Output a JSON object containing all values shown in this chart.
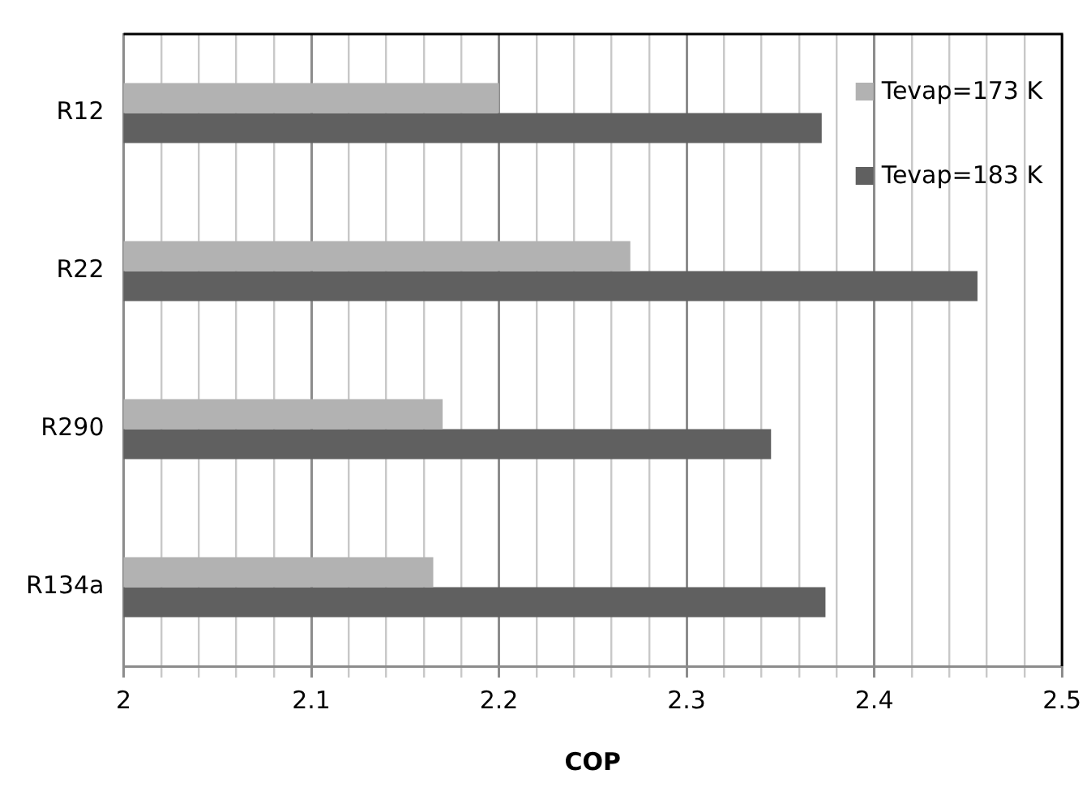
{
  "chart_data": {
    "type": "bar",
    "orientation": "horizontal",
    "xlabel": "COP",
    "categories": [
      "R12",
      "R22",
      "R290",
      "R134a"
    ],
    "series": [
      {
        "name": "Tevap=173 K",
        "color": "#b2b2b2",
        "values": [
          2.2,
          2.27,
          2.17,
          2.165
        ]
      },
      {
        "name": "Tevap=183 K",
        "color": "#606060",
        "values": [
          2.372,
          2.455,
          2.345,
          2.374
        ]
      }
    ],
    "xlim": [
      2,
      2.5
    ],
    "xticks": [
      2,
      {
        "value": 2.02,
        "label": null
      },
      {
        "value": 2.04,
        "label": null
      },
      {
        "value": 2.06,
        "label": null
      },
      {
        "value": 2.08,
        "label": null
      },
      2.1,
      {
        "value": 2.12,
        "label": null
      },
      {
        "value": 2.14,
        "label": null
      },
      {
        "value": 2.16,
        "label": null
      },
      {
        "value": 2.18,
        "label": null
      },
      2.2,
      {
        "value": 2.22,
        "label": null
      },
      {
        "value": 2.24,
        "label": null
      },
      {
        "value": 2.26,
        "label": null
      },
      {
        "value": 2.28,
        "label": null
      },
      2.3,
      {
        "value": 2.32,
        "label": null
      },
      {
        "value": 2.34,
        "label": null
      },
      {
        "value": 2.36,
        "label": null
      },
      {
        "value": 2.38,
        "label": null
      },
      2.4,
      {
        "value": 2.42,
        "label": null
      },
      {
        "value": 2.44,
        "label": null
      },
      {
        "value": 2.46,
        "label": null
      },
      {
        "value": 2.48,
        "label": null
      },
      2.5
    ],
    "grid": "x",
    "legend": "top right"
  }
}
